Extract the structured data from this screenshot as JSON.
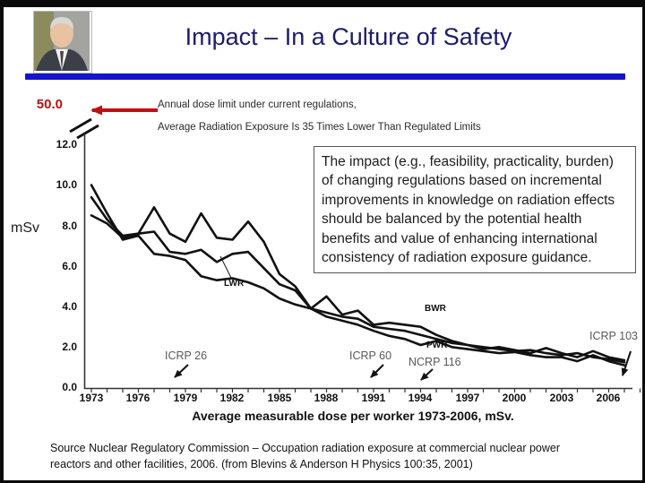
{
  "slide": {
    "title": "Impact – In a Culture of Safety",
    "title_color": "#1b1b6b",
    "accent_bar_color": "#1414cc"
  },
  "photo": {
    "description": "portrait of elderly man in dark suit and tie"
  },
  "limit_callout": {
    "value": "50.0",
    "value_color": "#bb1111",
    "line1": "Annual dose limit under current regulations,",
    "line2": "Average Radiation Exposure Is 35 Times Lower Than Regulated Limits"
  },
  "impact_box": {
    "text": "The impact (e.g., feasibility, practicality, burden) of changing regulations based on incremental improvements in knowledge on radiation effects should be balanced by the potential health benefits and value of enhancing international consistency of radiation exposure guidance."
  },
  "chart": {
    "y_axis_label": "mSv",
    "y_ticks": [
      "12.0",
      "10.0",
      "8.0",
      "6.0",
      "4.0",
      "2.0",
      "0.0"
    ],
    "x_ticks": [
      "1973",
      "1976",
      "1979",
      "1982",
      "1985",
      "1988",
      "1991",
      "1994",
      "1997",
      "2000",
      "2003",
      "2006"
    ],
    "x_title": "Average measurable dose per worker 1973-2006, mSv.",
    "series_labels": {
      "lwr": "LWR",
      "bwr": "BWR",
      "pwr": "PWR"
    },
    "annotations": {
      "a0": "ICRP 26",
      "a1": "ICRP 60",
      "a2": "NCRP 116",
      "a3": "ICRP 103"
    },
    "line_color": "#111111"
  },
  "chart_data": {
    "type": "line",
    "title": "Average measurable dose per worker 1973-2006, mSv.",
    "xlabel": "year",
    "ylabel": "mSv",
    "ylim": [
      0,
      12
    ],
    "y_axis_break_to": 50.0,
    "grid": false,
    "x": [
      1973,
      1974,
      1975,
      1976,
      1977,
      1978,
      1979,
      1980,
      1981,
      1982,
      1983,
      1984,
      1985,
      1986,
      1987,
      1988,
      1989,
      1990,
      1991,
      1992,
      1993,
      1994,
      1995,
      1996,
      1997,
      1998,
      1999,
      2000,
      2001,
      2002,
      2003,
      2004,
      2005,
      2006,
      2007
    ],
    "series": [
      {
        "name": "BWR",
        "values": [
          8.5,
          8.1,
          7.4,
          7.6,
          8.9,
          7.6,
          7.2,
          8.6,
          7.4,
          7.3,
          8.2,
          7.2,
          5.6,
          5.0,
          3.9,
          4.5,
          3.6,
          3.8,
          3.1,
          3.2,
          3.1,
          3.0,
          2.6,
          2.3,
          2.1,
          1.9,
          2.0,
          1.85,
          1.7,
          1.95,
          1.7,
          1.5,
          1.8,
          1.5,
          1.35
        ]
      },
      {
        "name": "LWR",
        "values": [
          9.4,
          8.3,
          7.5,
          7.6,
          7.7,
          6.7,
          6.6,
          6.8,
          6.2,
          6.6,
          6.7,
          5.9,
          5.1,
          4.8,
          3.9,
          3.7,
          3.5,
          3.4,
          3.0,
          2.9,
          2.8,
          2.6,
          2.4,
          2.2,
          2.1,
          2.0,
          1.9,
          1.8,
          1.85,
          1.7,
          1.6,
          1.7,
          1.5,
          1.4,
          1.25
        ]
      },
      {
        "name": "PWR",
        "values": [
          10.0,
          8.6,
          7.3,
          7.5,
          6.6,
          6.5,
          6.3,
          5.5,
          5.3,
          5.4,
          5.2,
          4.9,
          4.4,
          4.1,
          3.9,
          3.5,
          3.3,
          3.1,
          2.8,
          2.55,
          2.4,
          2.1,
          2.3,
          2.0,
          1.9,
          1.8,
          1.7,
          1.75,
          1.6,
          1.5,
          1.5,
          1.3,
          1.6,
          1.3,
          1.1
        ]
      }
    ],
    "annotations": [
      {
        "label": "ICRP 26",
        "x": 1978
      },
      {
        "label": "ICRP 60",
        "x": 1991
      },
      {
        "label": "NCRP 116",
        "x": 1994
      },
      {
        "label": "ICRP 103",
        "x": 2007
      }
    ]
  },
  "source": {
    "text": "Source Nuclear Regulatory Commission – Occupation radiation exposure at commercial nuclear power reactors and other facilities, 2006. (from Blevins & Anderson H Physics 100:35, 2001)"
  }
}
